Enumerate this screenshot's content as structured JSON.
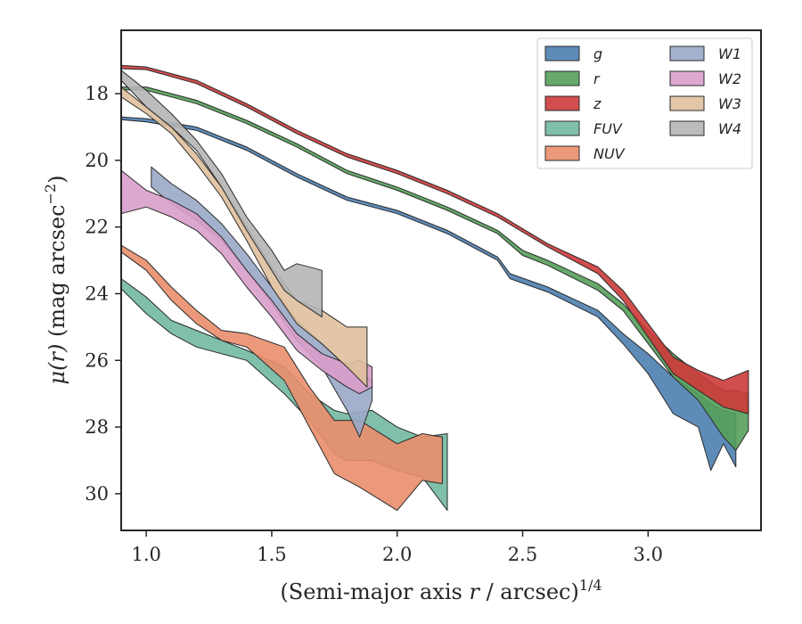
{
  "chart_data": {
    "type": "area",
    "title": "",
    "xlabel": "(Semi-major axis ",
    "xlabel_var": "r",
    "xlabel_unit": " / arcsec)",
    "xlabel_sup": "1/4",
    "ylabel_mu": "μ",
    "ylabel_var": "(r)",
    "ylabel_unit": " (mag arcsec",
    "ylabel_sup": "−2",
    "ylabel_close": ")",
    "xlim": [
      0.9,
      3.45
    ],
    "ylim": [
      31.1,
      16.1
    ],
    "y_inverted": true,
    "grid": false,
    "legend_position": "top-right",
    "xticks": [
      {
        "value": 1.0,
        "label": "1.0"
      },
      {
        "value": 1.5,
        "label": "1.5"
      },
      {
        "value": 2.0,
        "label": "2.0"
      },
      {
        "value": 2.5,
        "label": "2.5"
      },
      {
        "value": 3.0,
        "label": "3.0"
      }
    ],
    "yticks": [
      {
        "value": 18,
        "label": "18"
      },
      {
        "value": 20,
        "label": "20"
      },
      {
        "value": 22,
        "label": "22"
      },
      {
        "value": 24,
        "label": "24"
      },
      {
        "value": 26,
        "label": "26"
      },
      {
        "value": 28,
        "label": "28"
      },
      {
        "value": 30,
        "label": "30"
      }
    ],
    "series": [
      {
        "name": "g",
        "color": "#4c7fb0",
        "points": [
          [
            0.9,
            18.7,
            18.78
          ],
          [
            1.0,
            18.75,
            18.85
          ],
          [
            1.2,
            19.0,
            19.1
          ],
          [
            1.4,
            19.6,
            19.7
          ],
          [
            1.6,
            20.4,
            20.5
          ],
          [
            1.8,
            21.1,
            21.2
          ],
          [
            2.0,
            21.5,
            21.6
          ],
          [
            2.2,
            22.1,
            22.2
          ],
          [
            2.4,
            22.9,
            23.0
          ],
          [
            2.45,
            23.4,
            23.55
          ],
          [
            2.6,
            23.8,
            23.95
          ],
          [
            2.8,
            24.5,
            24.7
          ],
          [
            2.9,
            25.2,
            25.5
          ],
          [
            3.0,
            25.8,
            26.4
          ],
          [
            3.1,
            26.5,
            27.6
          ],
          [
            3.2,
            27.0,
            28.0
          ],
          [
            3.25,
            27.3,
            29.3
          ],
          [
            3.3,
            27.5,
            28.5
          ],
          [
            3.35,
            27.6,
            29.2
          ]
        ]
      },
      {
        "name": "r",
        "color": "#55a05a",
        "points": [
          [
            0.9,
            17.8,
            17.88
          ],
          [
            1.0,
            17.8,
            17.9
          ],
          [
            1.2,
            18.2,
            18.3
          ],
          [
            1.4,
            18.8,
            18.9
          ],
          [
            1.6,
            19.5,
            19.6
          ],
          [
            1.8,
            20.3,
            20.4
          ],
          [
            2.0,
            20.8,
            20.9
          ],
          [
            2.2,
            21.4,
            21.5
          ],
          [
            2.4,
            22.1,
            22.2
          ],
          [
            2.5,
            22.7,
            22.85
          ],
          [
            2.6,
            23.0,
            23.15
          ],
          [
            2.8,
            23.7,
            23.9
          ],
          [
            2.9,
            24.3,
            24.5
          ],
          [
            3.0,
            25.1,
            25.5
          ],
          [
            3.1,
            25.8,
            26.5
          ],
          [
            3.2,
            26.4,
            27.2
          ],
          [
            3.3,
            26.9,
            28.3
          ],
          [
            3.35,
            26.9,
            28.7
          ],
          [
            3.4,
            27.0,
            28.1
          ]
        ]
      },
      {
        "name": "z",
        "color": "#cd3a3a",
        "points": [
          [
            0.9,
            17.15,
            17.25
          ],
          [
            1.0,
            17.2,
            17.28
          ],
          [
            1.2,
            17.6,
            17.7
          ],
          [
            1.4,
            18.3,
            18.4
          ],
          [
            1.6,
            19.1,
            19.2
          ],
          [
            1.8,
            19.8,
            19.9
          ],
          [
            2.0,
            20.3,
            20.4
          ],
          [
            2.2,
            20.9,
            21.0
          ],
          [
            2.4,
            21.6,
            21.7
          ],
          [
            2.6,
            22.5,
            22.6
          ],
          [
            2.8,
            23.2,
            23.4
          ],
          [
            2.9,
            23.9,
            24.2
          ],
          [
            3.0,
            24.9,
            25.3
          ],
          [
            3.1,
            25.9,
            26.4
          ],
          [
            3.2,
            26.3,
            26.9
          ],
          [
            3.3,
            26.6,
            27.4
          ],
          [
            3.4,
            26.3,
            27.6
          ]
        ]
      },
      {
        "name": "FUV",
        "color": "#72b8a1",
        "points": [
          [
            0.9,
            23.55,
            23.85
          ],
          [
            1.0,
            24.1,
            24.6
          ],
          [
            1.1,
            24.8,
            25.2
          ],
          [
            1.2,
            25.1,
            25.6
          ],
          [
            1.4,
            25.7,
            26.0
          ],
          [
            1.55,
            26.2,
            27.0
          ],
          [
            1.65,
            27.0,
            27.8
          ],
          [
            1.75,
            27.5,
            28.8
          ],
          [
            1.8,
            27.6,
            29.0
          ],
          [
            1.9,
            27.5,
            29.0
          ],
          [
            2.0,
            28.0,
            29.3
          ],
          [
            2.1,
            28.3,
            29.5
          ],
          [
            2.2,
            28.2,
            30.5
          ]
        ]
      },
      {
        "name": "NUV",
        "color": "#e98e6c",
        "points": [
          [
            0.9,
            22.55,
            22.75
          ],
          [
            1.0,
            23.0,
            23.3
          ],
          [
            1.1,
            23.8,
            24.2
          ],
          [
            1.2,
            24.5,
            24.9
          ],
          [
            1.3,
            25.1,
            25.4
          ],
          [
            1.4,
            25.2,
            25.6
          ],
          [
            1.55,
            25.6,
            26.6
          ],
          [
            1.65,
            26.8,
            28.0
          ],
          [
            1.75,
            27.8,
            29.4
          ],
          [
            1.85,
            27.8,
            29.8
          ],
          [
            2.0,
            28.5,
            30.5
          ],
          [
            2.1,
            28.2,
            29.6
          ],
          [
            2.18,
            28.3,
            29.7
          ]
        ]
      },
      {
        "name": "W1",
        "color": "#9aa8c8",
        "points": [
          [
            1.02,
            20.2,
            20.8
          ],
          [
            1.1,
            20.7,
            21.3
          ],
          [
            1.2,
            21.2,
            21.8
          ],
          [
            1.3,
            21.9,
            22.4
          ],
          [
            1.4,
            22.8,
            23.3
          ],
          [
            1.5,
            23.8,
            24.3
          ],
          [
            1.6,
            24.8,
            25.4
          ],
          [
            1.7,
            25.5,
            26.2
          ],
          [
            1.8,
            26.2,
            27.5
          ],
          [
            1.85,
            26.4,
            28.3
          ],
          [
            1.9,
            26.6,
            27.2
          ]
        ]
      },
      {
        "name": "W2",
        "color": "#d99fcb",
        "points": [
          [
            0.9,
            20.3,
            21.6
          ],
          [
            1.0,
            20.9,
            21.4
          ],
          [
            1.1,
            21.2,
            21.7
          ],
          [
            1.2,
            21.6,
            22.1
          ],
          [
            1.3,
            22.3,
            22.8
          ],
          [
            1.4,
            23.3,
            23.8
          ],
          [
            1.5,
            24.2,
            24.7
          ],
          [
            1.6,
            25.2,
            25.7
          ],
          [
            1.7,
            25.8,
            26.3
          ],
          [
            1.8,
            26.1,
            26.8
          ],
          [
            1.85,
            26.0,
            27.0
          ],
          [
            1.9,
            26.2,
            26.8
          ]
        ]
      },
      {
        "name": "W3",
        "color": "#dfc09d",
        "points": [
          [
            0.9,
            17.8,
            18.1
          ],
          [
            1.0,
            18.4,
            18.6
          ],
          [
            1.1,
            19.0,
            19.2
          ],
          [
            1.2,
            19.8,
            20.1
          ],
          [
            1.3,
            20.8,
            21.1
          ],
          [
            1.4,
            22.0,
            22.4
          ],
          [
            1.5,
            23.2,
            23.8
          ],
          [
            1.6,
            24.2,
            24.9
          ],
          [
            1.7,
            24.5,
            25.5
          ],
          [
            1.8,
            25.0,
            26.2
          ],
          [
            1.88,
            25.0,
            26.8
          ]
        ]
      },
      {
        "name": "W4",
        "color": "#b5b5b5",
        "points": [
          [
            0.9,
            17.3,
            17.6
          ],
          [
            1.0,
            17.9,
            18.4
          ],
          [
            1.1,
            18.6,
            19.0
          ],
          [
            1.2,
            19.4,
            19.7
          ],
          [
            1.3,
            20.4,
            20.8
          ],
          [
            1.4,
            21.7,
            22.1
          ],
          [
            1.5,
            22.7,
            23.3
          ],
          [
            1.55,
            23.3,
            23.9
          ],
          [
            1.6,
            23.1,
            24.2
          ],
          [
            1.7,
            23.3,
            24.7
          ]
        ]
      }
    ],
    "legend_columns": [
      [
        "g",
        "r",
        "z",
        "FUV",
        "NUV"
      ],
      [
        "W1",
        "W2",
        "W3",
        "W4"
      ]
    ]
  }
}
